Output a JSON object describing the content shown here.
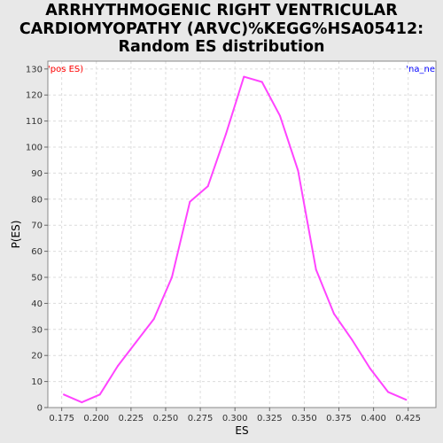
{
  "chart_data": {
    "type": "line",
    "title": [
      "ARRHYTHMOGENIC RIGHT VENTRICULAR",
      "CARDIOMYOPATHY (ARVC)%KEGG%HSA05412:",
      "Random ES distribution"
    ],
    "xlabel": "ES",
    "ylabel": "P(ES)",
    "xlim": [
      0.165,
      0.445
    ],
    "ylim": [
      0,
      133
    ],
    "grid": true,
    "x_ticks": [
      0.175,
      0.2,
      0.225,
      0.25,
      0.275,
      0.3,
      0.325,
      0.35,
      0.375,
      0.4,
      0.425
    ],
    "x_tick_labels": [
      "0.175",
      "0.200",
      "0.225",
      "0.250",
      "0.275",
      "0.300",
      "0.325",
      "0.350",
      "0.375",
      "0.400",
      "0.425"
    ],
    "y_ticks": [
      0,
      10,
      20,
      30,
      40,
      50,
      60,
      70,
      80,
      90,
      100,
      110,
      120,
      130
    ],
    "y_tick_labels": [
      "0",
      "10",
      "20",
      "30",
      "40",
      "50",
      "60",
      "70",
      "80",
      "90",
      "100",
      "110",
      "120",
      "130"
    ],
    "annotations": {
      "left": "'pos ES)",
      "right": "'na_ne"
    },
    "annotation_colors": {
      "left": "#ff0000",
      "right": "#0000ff"
    },
    "series": [
      {
        "color": "#ff44ff",
        "x": [
          0.1765,
          0.1895,
          0.2025,
          0.2155,
          0.2285,
          0.2415,
          0.2545,
          0.2675,
          0.2805,
          0.2935,
          0.3065,
          0.3195,
          0.3325,
          0.3455,
          0.3585,
          0.3715,
          0.3845,
          0.3975,
          0.4105,
          0.4235
        ],
        "values": [
          5,
          2,
          5,
          16,
          25,
          34,
          50,
          79,
          85,
          105,
          127,
          125,
          112,
          91,
          53,
          36,
          26,
          15,
          6,
          3
        ]
      }
    ]
  }
}
